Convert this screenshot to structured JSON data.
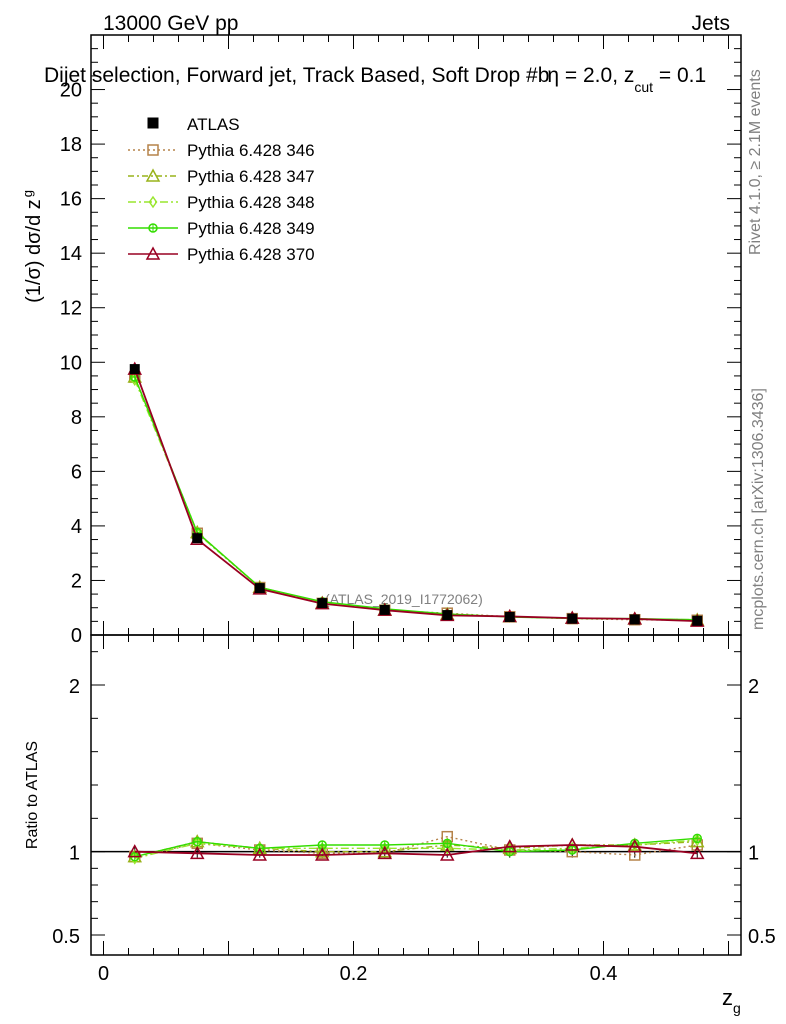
{
  "header": {
    "left": "13000 GeV pp",
    "right": "Jets",
    "title_main": "Dijet selection, Forward jet, Track Based, Soft Drop #b",
    "title_eta": "η = 2.0, z",
    "title_cut_sub": "cut",
    "title_tail": " = 0.1"
  },
  "side": {
    "rivet": "Rivet 4.1.0, ≥ 2.1M events",
    "mcplots": "mcplots.cern.ch [arXiv:1306.3436]"
  },
  "watermark": "(ATLAS_2019_I1772062)",
  "chart_data": {
    "type": "line",
    "xlabel": "z",
    "xlabel_sub": "g",
    "xlim": [
      -0.01,
      0.51
    ],
    "xticks": [
      0,
      0.2,
      0.4
    ],
    "xtick_labels": [
      "0",
      "0.2",
      "0.4"
    ],
    "x": [
      0.025,
      0.075,
      0.125,
      0.175,
      0.225,
      0.275,
      0.325,
      0.375,
      0.425,
      0.475
    ],
    "main": {
      "ylabel": "(1/σ) dσ/d z",
      "ylabel_sub": "g",
      "ylim": [
        0,
        22
      ],
      "yticks": [
        0,
        2,
        4,
        6,
        8,
        10,
        12,
        14,
        16,
        18,
        20
      ],
      "ytick_labels": [
        "0",
        "2",
        "4",
        "6",
        "8",
        "10",
        "12",
        "14",
        "16",
        "18",
        "20"
      ]
    },
    "ratio": {
      "ylabel": "Ratio to ATLAS",
      "ylim": [
        0.38,
        2.3
      ],
      "yticks": [
        0.5,
        1,
        2
      ],
      "ytick_labels": [
        "0.5",
        "1",
        "2"
      ]
    },
    "data": {
      "name": "ATLAS",
      "values": [
        9.75,
        3.55,
        1.72,
        1.17,
        0.92,
        0.73,
        0.66,
        0.6,
        0.57,
        0.52
      ]
    },
    "series": [
      {
        "name": "Pythia 6.428 346",
        "color": "#b5834a",
        "marker": "square",
        "dash": "2,3",
        "ratio": [
          0.97,
          1.05,
          1.01,
          0.99,
          0.99,
          1.09,
          1.01,
          1.0,
          0.98,
          1.04
        ],
        "values": [
          9.46,
          3.73,
          1.74,
          1.16,
          0.91,
          0.8,
          0.67,
          0.6,
          0.56,
          0.54
        ]
      },
      {
        "name": "Pythia 6.428 347",
        "color": "#99b31a",
        "marker": "triangle",
        "dash": "6,3,2,3",
        "ratio": [
          0.97,
          1.06,
          1.02,
          1.0,
          1.0,
          1.04,
          1.02,
          1.04,
          1.04,
          1.06
        ],
        "values": [
          9.46,
          3.76,
          1.75,
          1.17,
          0.92,
          0.76,
          0.67,
          0.62,
          0.59,
          0.55
        ]
      },
      {
        "name": "Pythia 6.428 348",
        "color": "#99e62e",
        "marker": "diamond",
        "dash": "8,3,2,3",
        "ratio": [
          0.96,
          1.05,
          1.02,
          1.02,
          1.02,
          1.02,
          1.01,
          1.02,
          1.04,
          1.07
        ],
        "values": [
          9.36,
          3.73,
          1.75,
          1.19,
          0.94,
          0.74,
          0.67,
          0.61,
          0.59,
          0.56
        ]
      },
      {
        "name": "Pythia 6.428 349",
        "color": "#33dd00",
        "marker": "circle-cross",
        "dash": "",
        "ratio": [
          0.97,
          1.06,
          1.02,
          1.04,
          1.04,
          1.05,
          1.0,
          1.01,
          1.05,
          1.08
        ],
        "values": [
          9.46,
          3.76,
          1.75,
          1.22,
          0.96,
          0.77,
          0.66,
          0.61,
          0.6,
          0.56
        ]
      },
      {
        "name": "Pythia 6.428 370",
        "color": "#990022",
        "marker": "triangle",
        "dash": "",
        "ratio": [
          1.0,
          0.99,
          0.98,
          0.98,
          0.99,
          0.98,
          1.03,
          1.04,
          1.03,
          0.99
        ],
        "values": [
          9.75,
          3.51,
          1.69,
          1.15,
          0.91,
          0.72,
          0.68,
          0.62,
          0.59,
          0.51
        ]
      }
    ]
  }
}
